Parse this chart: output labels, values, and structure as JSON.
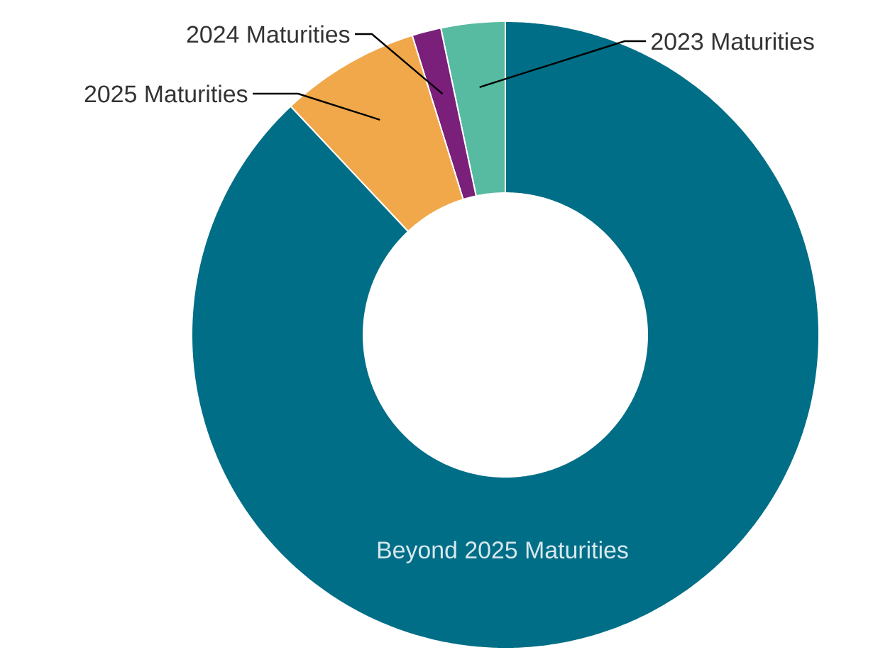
{
  "chart_data": {
    "type": "donut",
    "categories": [
      "2023 Maturities",
      "2024 Maturities",
      "2025 Maturities",
      "Beyond 2025 Maturities"
    ],
    "values": [
      3.3,
      1.5,
      7.2,
      88.0
    ],
    "colors": [
      "#56bba0",
      "#7a1f7a",
      "#f0a84b",
      "#006e87"
    ]
  }
}
